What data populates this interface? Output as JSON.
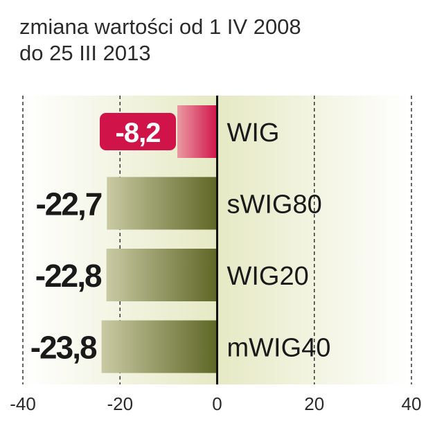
{
  "title_lines": [
    "zmiana wartości od 1 IV 2008",
    "do 25 III 2013"
  ],
  "colors": {
    "highlight": "#d0144a",
    "highlight_light": "#eb9aa3",
    "bar_dark": "#5e6626",
    "bar_light": "#c9caa3",
    "background_dark": "#e6e9c4",
    "background_light": "#ffffff",
    "text": "#1a1a1a"
  },
  "chart_data": {
    "type": "bar",
    "orientation": "horizontal",
    "title": "zmiana wartości od 1 IV 2008 do 25 III 2013",
    "categories": [
      "WIG",
      "sWIG80",
      "WIG20",
      "mWIG40"
    ],
    "values": [
      -8.2,
      -22.7,
      -22.8,
      -23.8
    ],
    "value_labels": [
      "-8,2",
      "-22,7",
      "-22,8",
      "-23,8"
    ],
    "highlighted_category": "WIG",
    "xlim": [
      -40,
      40
    ],
    "xticks": [
      -40,
      -20,
      0,
      20,
      40
    ],
    "xtick_labels": [
      "-40",
      "-20",
      "0",
      "20",
      "40"
    ],
    "grid": "vertical dashed"
  }
}
